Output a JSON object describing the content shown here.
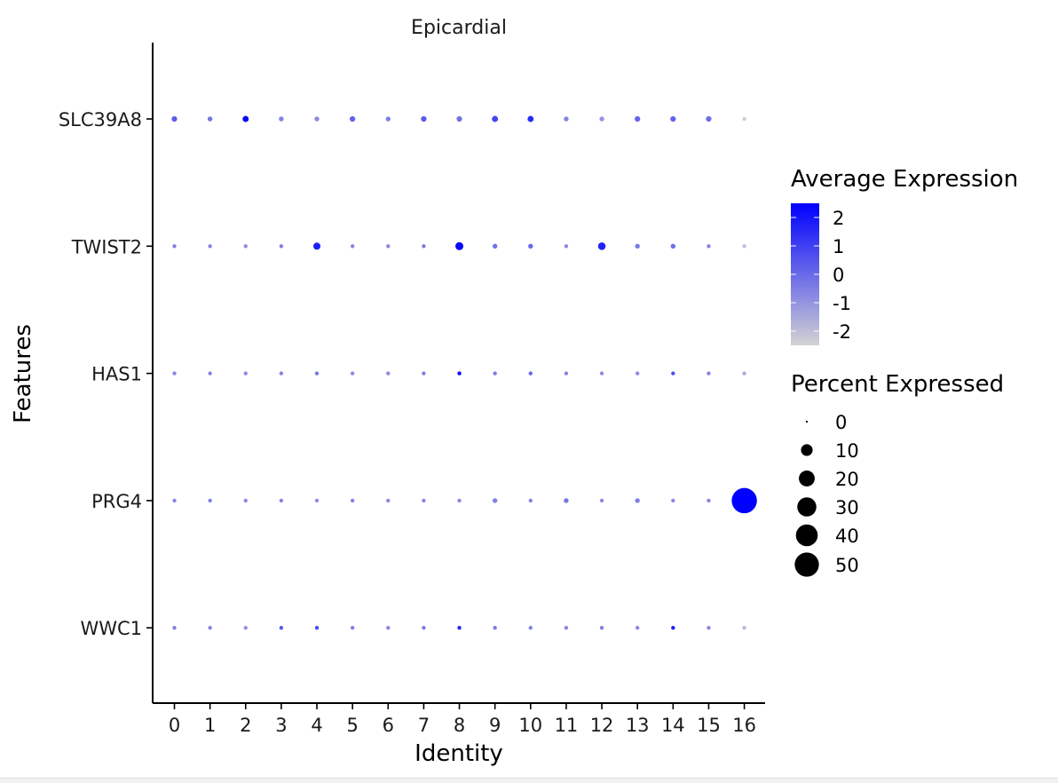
{
  "chart_data": {
    "type": "scatter",
    "subtype": "dot-plot",
    "title": "Epicardial",
    "xlabel": "Identity",
    "ylabel": "Features",
    "categories": [
      "0",
      "1",
      "2",
      "3",
      "4",
      "5",
      "6",
      "7",
      "8",
      "9",
      "10",
      "11",
      "12",
      "13",
      "14",
      "15",
      "16"
    ],
    "features": [
      "SLC39A8",
      "TWIST2",
      "HAS1",
      "PRG4",
      "WWC1"
    ],
    "avg_expression": {
      "SLC39A8": [
        0.3,
        -0.3,
        2.3,
        -0.6,
        -0.8,
        0.2,
        -0.5,
        0.4,
        -0.2,
        0.9,
        1.5,
        -0.6,
        -1.0,
        0.1,
        0.2,
        -0.1,
        -2.3
      ],
      "TWIST2": [
        -0.5,
        -0.6,
        -0.8,
        -0.5,
        1.8,
        -0.6,
        -0.7,
        -0.4,
        2.3,
        -0.2,
        0.0,
        -0.7,
        1.7,
        -0.4,
        -0.1,
        -0.6,
        -2.0
      ],
      "HAS1": [
        -0.7,
        -0.6,
        -0.8,
        -0.6,
        -0.3,
        -0.8,
        -0.8,
        -0.5,
        2.4,
        -0.4,
        0.1,
        -0.6,
        -0.8,
        -0.8,
        0.6,
        -0.6,
        -1.5
      ],
      "PRG4": [
        -0.6,
        -0.5,
        -0.7,
        -0.6,
        -0.8,
        -0.5,
        -0.7,
        -0.6,
        -0.7,
        -0.5,
        -0.6,
        -0.3,
        -0.7,
        -0.5,
        -0.7,
        -0.6,
        2.5
      ],
      "WWC1": [
        -0.6,
        -0.6,
        -0.9,
        0.4,
        0.8,
        -0.5,
        -0.7,
        -0.4,
        1.6,
        -0.4,
        -0.6,
        -0.7,
        -0.5,
        -0.7,
        1.8,
        -0.7,
        -1.9
      ]
    },
    "pct_expressed": {
      "SLC39A8": [
        1.5,
        1,
        2,
        1,
        1,
        1.5,
        1,
        1.5,
        1.5,
        2,
        2,
        1,
        1,
        1.5,
        1.5,
        1.5,
        0.5
      ],
      "TWIST2": [
        0.5,
        0.5,
        0.5,
        0.5,
        3,
        0.5,
        0.5,
        0.5,
        4,
        1,
        1,
        0.5,
        3.5,
        1,
        1,
        0.5,
        0.5
      ],
      "HAS1": [
        0.5,
        0.5,
        0.5,
        0.5,
        0.5,
        0.5,
        0.5,
        0.5,
        0.5,
        0.5,
        0.5,
        0.5,
        0.5,
        0.5,
        0.5,
        0.5,
        0.5
      ],
      "PRG4": [
        0.5,
        0.5,
        0.5,
        0.5,
        0.5,
        0.5,
        0.5,
        0.5,
        0.5,
        1,
        0.5,
        1,
        0.5,
        1,
        0.5,
        0.5,
        55
      ],
      "WWC1": [
        0.5,
        0.5,
        0.5,
        0.5,
        0.5,
        0.5,
        0.5,
        0.5,
        0.5,
        0.5,
        0.5,
        0.5,
        0.5,
        0.5,
        0.5,
        0.5,
        0.5
      ]
    },
    "color_scale": {
      "low": "#d3d3d3",
      "high": "#0000ff",
      "min": -2.5,
      "max": 2.5
    },
    "legend": {
      "color_title": "Average Expression",
      "color_ticks": [
        2,
        1,
        0,
        -1,
        -2
      ],
      "color_tick_labels": [
        "2",
        "1",
        "0",
        "-1",
        "-2"
      ],
      "size_title": "Percent Expressed",
      "size_values": [
        0,
        10,
        20,
        30,
        40,
        50
      ],
      "size_labels": [
        "0",
        "10",
        "20",
        "30",
        "40",
        "50"
      ],
      "placement": "right"
    },
    "grid": false
  }
}
